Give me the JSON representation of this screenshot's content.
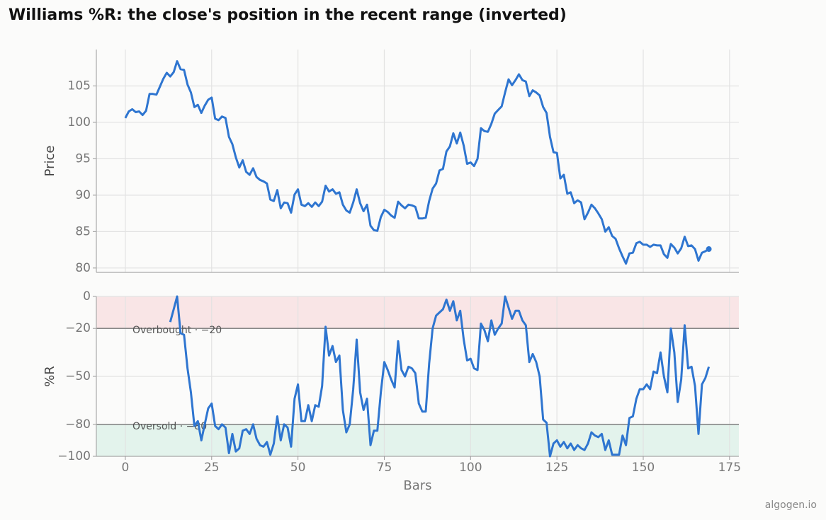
{
  "title": "Williams %R: the close's position in the recent range (inverted)",
  "watermark": "algogen.io",
  "chart_data": [
    {
      "type": "line",
      "ylabel": "Price",
      "ylim": [
        79.4,
        110.0
      ],
      "yticks": [
        80,
        85,
        90,
        95,
        100,
        105
      ],
      "grid": true,
      "x": [
        0,
        1,
        2,
        3,
        4,
        5,
        6,
        7,
        8,
        9,
        10,
        11,
        12,
        13,
        14,
        15,
        16,
        17,
        18,
        19,
        20,
        21,
        22,
        23,
        24,
        25,
        26,
        27,
        28,
        29,
        30,
        31,
        32,
        33,
        34,
        35,
        36,
        37,
        38,
        39,
        40,
        41,
        42,
        43,
        44,
        45,
        46,
        47,
        48,
        49,
        50,
        51,
        52,
        53,
        54,
        55,
        56,
        57,
        58,
        59,
        60,
        61,
        62,
        63,
        64,
        65,
        66,
        67,
        68,
        69,
        70,
        71,
        72,
        73,
        74,
        75,
        76,
        77,
        78,
        79,
        80,
        81,
        82,
        83,
        84,
        85,
        86,
        87,
        88,
        89,
        90,
        91,
        92,
        93,
        94,
        95,
        96,
        97,
        98,
        99,
        100,
        101,
        102,
        103,
        104,
        105,
        106,
        107,
        108,
        109,
        110,
        111,
        112,
        113,
        114,
        115,
        116,
        117,
        118,
        119,
        120,
        121,
        122,
        123,
        124,
        125,
        126,
        127,
        128,
        129,
        130,
        131,
        132,
        133,
        134,
        135,
        136,
        137,
        138,
        139,
        140,
        141,
        142,
        143,
        144,
        145,
        146,
        147,
        148,
        149,
        150,
        151,
        152,
        153,
        154,
        155,
        156,
        157,
        158,
        159,
        160,
        161,
        162,
        163,
        164,
        165,
        166,
        167,
        168,
        169
      ],
      "series": [
        {
          "color": "#2e75d0",
          "values": [
            100.6,
            101.5,
            101.8,
            101.4,
            101.5,
            101.0,
            101.6,
            103.9,
            103.9,
            103.8,
            104.9,
            106.0,
            106.8,
            106.3,
            106.9,
            108.4,
            107.3,
            107.2,
            105.2,
            104.1,
            102.1,
            102.4,
            101.3,
            102.3,
            103.1,
            103.4,
            100.5,
            100.3,
            100.8,
            100.6,
            98.0,
            97.0,
            95.2,
            93.8,
            94.8,
            93.2,
            92.8,
            93.7,
            92.5,
            92.1,
            91.9,
            91.6,
            89.4,
            89.2,
            90.7,
            88.2,
            89.0,
            88.9,
            87.6,
            90.1,
            90.8,
            88.7,
            88.5,
            88.9,
            88.4,
            89.0,
            88.5,
            89.1,
            91.3,
            90.5,
            90.8,
            90.2,
            90.4,
            88.7,
            87.9,
            87.6,
            89.0,
            90.8,
            88.9,
            87.8,
            88.7,
            85.8,
            85.2,
            85.1,
            87.0,
            88.0,
            87.7,
            87.2,
            86.9,
            89.1,
            88.6,
            88.2,
            88.7,
            88.6,
            88.4,
            86.8,
            86.8,
            86.9,
            89.2,
            90.9,
            91.6,
            93.4,
            93.6,
            96.0,
            96.7,
            98.5,
            97.1,
            98.6,
            96.8,
            94.3,
            94.5,
            94.0,
            95.0,
            99.2,
            98.8,
            98.7,
            99.8,
            101.2,
            101.7,
            102.2,
            104.1,
            105.9,
            105.1,
            105.8,
            106.6,
            105.8,
            105.6,
            103.6,
            104.4,
            104.1,
            103.7,
            102.1,
            101.3,
            98.0,
            95.9,
            95.8,
            92.3,
            92.8,
            90.2,
            90.4,
            88.9,
            89.3,
            89.0,
            86.7,
            87.6,
            88.7,
            88.2,
            87.5,
            86.7,
            85.0,
            85.6,
            84.4,
            84.0,
            82.7,
            81.6,
            80.6,
            82.0,
            82.1,
            83.4,
            83.6,
            83.2,
            83.2,
            82.9,
            83.2,
            83.1,
            83.1,
            81.9,
            81.4,
            83.3,
            82.8,
            82.0,
            82.7,
            84.3,
            83.0,
            83.1,
            82.6,
            81.0,
            82.1,
            82.3,
            82.6
          ]
        }
      ]
    },
    {
      "type": "line",
      "ylabel": "%R",
      "xlabel": "Bars",
      "ylim": [
        -100,
        0
      ],
      "xlim": [
        -8.4,
        177.7
      ],
      "grid": true,
      "yticks": [
        0,
        {
          "value": -20,
          "label": "−20"
        },
        {
          "value": -50,
          "label": "−50"
        },
        {
          "value": -80,
          "label": "−80"
        },
        {
          "value": -100,
          "label": "−100"
        }
      ],
      "xticks": [
        0,
        25,
        50,
        75,
        100,
        125,
        150,
        175
      ],
      "thresholds": [
        {
          "label": "Overbought · −20",
          "value": -20,
          "band": "above",
          "color": "#f9e5e6"
        },
        {
          "label": "Oversold · −80",
          "value": -80,
          "band": "below",
          "color": "#e3f3ec"
        }
      ],
      "x": [
        0,
        1,
        2,
        3,
        4,
        5,
        6,
        7,
        8,
        9,
        10,
        11,
        12,
        13,
        14,
        15,
        16,
        17,
        18,
        19,
        20,
        21,
        22,
        23,
        24,
        25,
        26,
        27,
        28,
        29,
        30,
        31,
        32,
        33,
        34,
        35,
        36,
        37,
        38,
        39,
        40,
        41,
        42,
        43,
        44,
        45,
        46,
        47,
        48,
        49,
        50,
        51,
        52,
        53,
        54,
        55,
        56,
        57,
        58,
        59,
        60,
        61,
        62,
        63,
        64,
        65,
        66,
        67,
        68,
        69,
        70,
        71,
        72,
        73,
        74,
        75,
        76,
        77,
        78,
        79,
        80,
        81,
        82,
        83,
        84,
        85,
        86,
        87,
        88,
        89,
        90,
        91,
        92,
        93,
        94,
        95,
        96,
        97,
        98,
        99,
        100,
        101,
        102,
        103,
        104,
        105,
        106,
        107,
        108,
        109,
        110,
        111,
        112,
        113,
        114,
        115,
        116,
        117,
        118,
        119,
        120,
        121,
        122,
        123,
        124,
        125,
        126,
        127,
        128,
        129,
        130,
        131,
        132,
        133,
        134,
        135,
        136,
        137,
        138,
        139,
        140,
        141,
        142,
        143,
        144,
        145,
        146,
        147,
        148,
        149,
        150,
        151,
        152,
        153,
        154,
        155,
        156,
        157,
        158,
        159,
        160,
        161,
        162,
        163,
        164,
        165,
        166,
        167,
        168,
        169
      ],
      "series": [
        {
          "color": "#2e75d0",
          "values": [
            null,
            null,
            null,
            null,
            null,
            null,
            null,
            null,
            null,
            null,
            null,
            null,
            null,
            -16,
            -8,
            0,
            -23,
            -24,
            -45,
            -60,
            -81,
            -78,
            -90,
            -80,
            -70,
            -67,
            -81,
            -83,
            -80,
            -82,
            -98,
            -86,
            -97,
            -95,
            -84,
            -83,
            -86,
            -80,
            -89,
            -93,
            -94,
            -91,
            -99,
            -92,
            -75,
            -90,
            -80,
            -82,
            -94,
            -64,
            -55,
            -78,
            -78,
            -68,
            -78,
            -68,
            -69,
            -56,
            -19,
            -37,
            -31,
            -41,
            -37,
            -71,
            -85,
            -80,
            -58,
            -27,
            -60,
            -71,
            -64,
            -93,
            -84,
            -84,
            -60,
            -41,
            -46,
            -52,
            -57,
            -28,
            -46,
            -50,
            -44,
            -45,
            -48,
            -67,
            -72,
            -72,
            -42,
            -20,
            -12,
            -10,
            -8,
            -2,
            -9,
            -3,
            -15,
            -9,
            -27,
            -40,
            -39,
            -45,
            -46,
            -17,
            -21,
            -28,
            -15,
            -24,
            -20,
            -17,
            0,
            -7,
            -14,
            -9,
            -9,
            -15,
            -18,
            -41,
            -36,
            -41,
            -50,
            -77,
            -79,
            -100,
            -92,
            -90,
            -94,
            -91,
            -95,
            -92,
            -96,
            -93,
            -95,
            -96,
            -92,
            -85,
            -87,
            -88,
            -86,
            -96,
            -90,
            -99,
            -99,
            -99,
            -87,
            -93,
            -76,
            -75,
            -64,
            -58,
            -58,
            -55,
            -58,
            -47,
            -48,
            -35,
            -50,
            -60,
            -20,
            -35,
            -66,
            -52,
            -18,
            -45,
            -44,
            -56,
            -86,
            -55,
            -51,
            -44
          ]
        }
      ]
    }
  ]
}
